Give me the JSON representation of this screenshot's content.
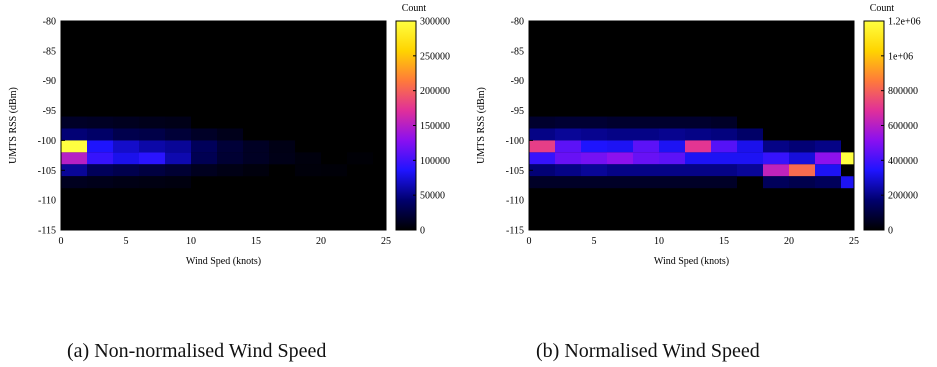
{
  "chart_data": [
    {
      "type": "heatmap",
      "caption": "(a) Non-normalised Wind Speed",
      "xlabel": "Wind Sped (knots)",
      "ylabel": "UMTS RSS (dBm)",
      "xlim": [
        0,
        25
      ],
      "ylim": [
        -115,
        -80
      ],
      "x_ticks": [
        "0",
        "5",
        "10",
        "15",
        "20",
        "25"
      ],
      "y_ticks": [
        "-80",
        "-85",
        "-90",
        "-95",
        "-100",
        "-105",
        "-110",
        "-115"
      ],
      "colorbar": {
        "title": "Count",
        "min": 0,
        "max": 300000,
        "ticks": [
          "0",
          "50000",
          "100000",
          "150000",
          "200000",
          "250000",
          "300000"
        ]
      },
      "palette": [
        "#000000",
        "#00006e",
        "#1f14ff",
        "#8a10f0",
        "#e02f9a",
        "#ff7a3a",
        "#ffd400",
        "#ffff40"
      ],
      "background": "#000000",
      "bin_width": 2,
      "bin_height": 2,
      "cells": [
        {
          "x": 1,
          "y": -97,
          "v": 15000
        },
        {
          "x": 1,
          "y": -99,
          "v": 45000
        },
        {
          "x": 1,
          "y": -101,
          "v": 300000
        },
        {
          "x": 1,
          "y": -103,
          "v": 150000
        },
        {
          "x": 1,
          "y": -105,
          "v": 55000
        },
        {
          "x": 1,
          "y": -107,
          "v": 12000
        },
        {
          "x": 3,
          "y": -97,
          "v": 14000
        },
        {
          "x": 3,
          "y": -99,
          "v": 40000
        },
        {
          "x": 3,
          "y": -101,
          "v": 85000
        },
        {
          "x": 3,
          "y": -103,
          "v": 95000
        },
        {
          "x": 3,
          "y": -105,
          "v": 35000
        },
        {
          "x": 3,
          "y": -107,
          "v": 10000
        },
        {
          "x": 5,
          "y": -97,
          "v": 12000
        },
        {
          "x": 5,
          "y": -99,
          "v": 30000
        },
        {
          "x": 5,
          "y": -101,
          "v": 70000
        },
        {
          "x": 5,
          "y": -103,
          "v": 80000
        },
        {
          "x": 5,
          "y": -105,
          "v": 30000
        },
        {
          "x": 5,
          "y": -107,
          "v": 8000
        },
        {
          "x": 7,
          "y": -97,
          "v": 10000
        },
        {
          "x": 7,
          "y": -99,
          "v": 28000
        },
        {
          "x": 7,
          "y": -101,
          "v": 60000
        },
        {
          "x": 7,
          "y": -103,
          "v": 90000
        },
        {
          "x": 7,
          "y": -105,
          "v": 25000
        },
        {
          "x": 7,
          "y": -107,
          "v": 7000
        },
        {
          "x": 9,
          "y": -97,
          "v": 9000
        },
        {
          "x": 9,
          "y": -99,
          "v": 22000
        },
        {
          "x": 9,
          "y": -101,
          "v": 55000
        },
        {
          "x": 9,
          "y": -103,
          "v": 62000
        },
        {
          "x": 9,
          "y": -105,
          "v": 20000
        },
        {
          "x": 9,
          "y": -107,
          "v": 6000
        },
        {
          "x": 11,
          "y": -99,
          "v": 15000
        },
        {
          "x": 11,
          "y": -101,
          "v": 35000
        },
        {
          "x": 11,
          "y": -103,
          "v": 32000
        },
        {
          "x": 11,
          "y": -105,
          "v": 12000
        },
        {
          "x": 13,
          "y": -99,
          "v": 10000
        },
        {
          "x": 13,
          "y": -101,
          "v": 22000
        },
        {
          "x": 13,
          "y": -103,
          "v": 20000
        },
        {
          "x": 13,
          "y": -105,
          "v": 8000
        },
        {
          "x": 15,
          "y": -101,
          "v": 14000
        },
        {
          "x": 15,
          "y": -103,
          "v": 14000
        },
        {
          "x": 15,
          "y": -105,
          "v": 5000
        },
        {
          "x": 17,
          "y": -101,
          "v": 8000
        },
        {
          "x": 17,
          "y": -103,
          "v": 9000
        },
        {
          "x": 19,
          "y": -103,
          "v": 5000
        },
        {
          "x": 19,
          "y": -105,
          "v": 4000
        },
        {
          "x": 21,
          "y": -105,
          "v": 3000
        },
        {
          "x": 23,
          "y": -103,
          "v": 2500
        }
      ]
    },
    {
      "type": "heatmap",
      "caption": "(b) Normalised Wind Speed",
      "xlabel": "Wind Sped (knots)",
      "ylabel": "UMTS RSS (dBm)",
      "xlim": [
        0,
        25
      ],
      "ylim": [
        -115,
        -80
      ],
      "x_ticks": [
        "0",
        "5",
        "10",
        "15",
        "20",
        "25"
      ],
      "y_ticks": [
        "-80",
        "-85",
        "-90",
        "-95",
        "-100",
        "-105",
        "-110",
        "-115"
      ],
      "colorbar": {
        "title": "Count",
        "min": 0,
        "max": 1200000,
        "ticks": [
          "0",
          "200000",
          "400000",
          "600000",
          "800000",
          "1e+06",
          "1.2e+06"
        ]
      },
      "palette": [
        "#000000",
        "#00006e",
        "#1f14ff",
        "#8a10f0",
        "#e02f9a",
        "#ff7a3a",
        "#ffd400",
        "#ffff40"
      ],
      "background": "#000000",
      "bin_width": 2,
      "bin_height": 2,
      "cells": [
        {
          "x": 1,
          "y": -97,
          "v": 70000
        },
        {
          "x": 1,
          "y": -99,
          "v": 200000
        },
        {
          "x": 1,
          "y": -101,
          "v": 720000
        },
        {
          "x": 1,
          "y": -103,
          "v": 380000
        },
        {
          "x": 1,
          "y": -105,
          "v": 180000
        },
        {
          "x": 1,
          "y": -107,
          "v": 60000
        },
        {
          "x": 3,
          "y": -97,
          "v": 80000
        },
        {
          "x": 3,
          "y": -99,
          "v": 220000
        },
        {
          "x": 3,
          "y": -101,
          "v": 440000
        },
        {
          "x": 3,
          "y": -103,
          "v": 460000
        },
        {
          "x": 3,
          "y": -105,
          "v": 200000
        },
        {
          "x": 3,
          "y": -107,
          "v": 60000
        },
        {
          "x": 5,
          "y": -97,
          "v": 80000
        },
        {
          "x": 5,
          "y": -99,
          "v": 210000
        },
        {
          "x": 5,
          "y": -101,
          "v": 340000
        },
        {
          "x": 5,
          "y": -103,
          "v": 480000
        },
        {
          "x": 5,
          "y": -105,
          "v": 220000
        },
        {
          "x": 5,
          "y": -107,
          "v": 60000
        },
        {
          "x": 7,
          "y": -97,
          "v": 70000
        },
        {
          "x": 7,
          "y": -99,
          "v": 200000
        },
        {
          "x": 7,
          "y": -101,
          "v": 330000
        },
        {
          "x": 7,
          "y": -103,
          "v": 520000
        },
        {
          "x": 7,
          "y": -105,
          "v": 200000
        },
        {
          "x": 7,
          "y": -107,
          "v": 60000
        },
        {
          "x": 9,
          "y": -97,
          "v": 70000
        },
        {
          "x": 9,
          "y": -99,
          "v": 200000
        },
        {
          "x": 9,
          "y": -101,
          "v": 440000
        },
        {
          "x": 9,
          "y": -103,
          "v": 460000
        },
        {
          "x": 9,
          "y": -105,
          "v": 200000
        },
        {
          "x": 9,
          "y": -107,
          "v": 60000
        },
        {
          "x": 11,
          "y": -97,
          "v": 70000
        },
        {
          "x": 11,
          "y": -99,
          "v": 210000
        },
        {
          "x": 11,
          "y": -101,
          "v": 330000
        },
        {
          "x": 11,
          "y": -103,
          "v": 440000
        },
        {
          "x": 11,
          "y": -105,
          "v": 200000
        },
        {
          "x": 11,
          "y": -107,
          "v": 60000
        },
        {
          "x": 13,
          "y": -97,
          "v": 70000
        },
        {
          "x": 13,
          "y": -99,
          "v": 200000
        },
        {
          "x": 13,
          "y": -101,
          "v": 700000
        },
        {
          "x": 13,
          "y": -103,
          "v": 330000
        },
        {
          "x": 13,
          "y": -105,
          "v": 200000
        },
        {
          "x": 13,
          "y": -107,
          "v": 60000
        },
        {
          "x": 15,
          "y": -97,
          "v": 60000
        },
        {
          "x": 15,
          "y": -99,
          "v": 190000
        },
        {
          "x": 15,
          "y": -101,
          "v": 430000
        },
        {
          "x": 15,
          "y": -103,
          "v": 330000
        },
        {
          "x": 15,
          "y": -105,
          "v": 200000
        },
        {
          "x": 15,
          "y": -107,
          "v": 60000
        },
        {
          "x": 17,
          "y": -99,
          "v": 160000
        },
        {
          "x": 17,
          "y": -101,
          "v": 320000
        },
        {
          "x": 17,
          "y": -103,
          "v": 330000
        },
        {
          "x": 17,
          "y": -105,
          "v": 220000
        },
        {
          "x": 19,
          "y": -101,
          "v": 200000
        },
        {
          "x": 19,
          "y": -103,
          "v": 380000
        },
        {
          "x": 19,
          "y": -105,
          "v": 620000
        },
        {
          "x": 19,
          "y": -107,
          "v": 140000
        },
        {
          "x": 21,
          "y": -101,
          "v": 180000
        },
        {
          "x": 21,
          "y": -103,
          "v": 300000
        },
        {
          "x": 21,
          "y": -105,
          "v": 820000
        },
        {
          "x": 21,
          "y": -107,
          "v": 120000
        },
        {
          "x": 23,
          "y": -101,
          "v": 200000
        },
        {
          "x": 23,
          "y": -103,
          "v": 520000
        },
        {
          "x": 23,
          "y": -105,
          "v": 330000
        },
        {
          "x": 23,
          "y": -107,
          "v": 140000
        },
        {
          "x": 25,
          "y": -103,
          "v": 1200000
        },
        {
          "x": 25,
          "y": -107,
          "v": 330000
        }
      ]
    }
  ]
}
